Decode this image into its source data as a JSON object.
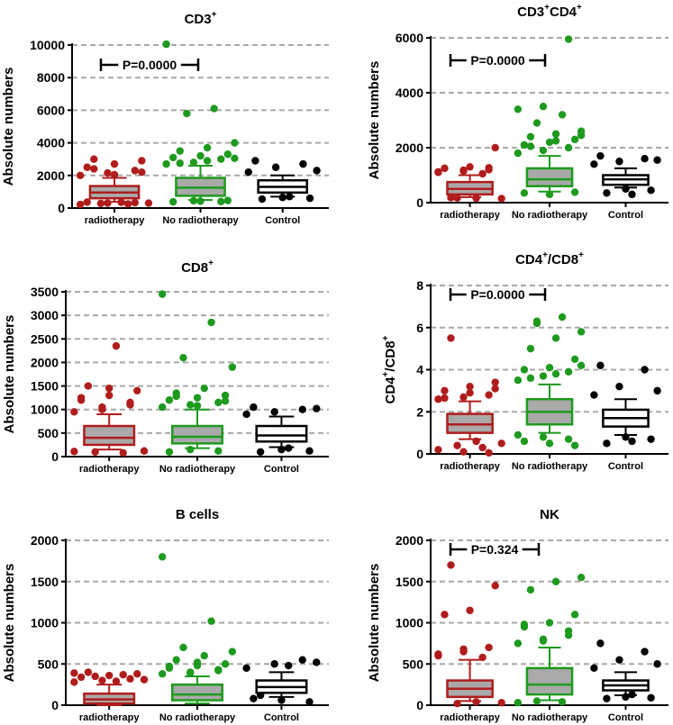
{
  "chart_data": [
    {
      "type": "box",
      "title": "CD3",
      "title_sup": "+",
      "ylabel": "Absolute numbers",
      "ylim": [
        0,
        10000
      ],
      "yticks": [
        0,
        2000,
        4000,
        6000,
        8000,
        10000
      ],
      "grid": true,
      "categories": [
        "radiotherapy",
        "No radiotherapy",
        "Control"
      ],
      "colors": [
        "#b01c1c",
        "#1e9a1e",
        "#000000"
      ],
      "boxes": [
        {
          "whisker_low": 380,
          "q1": 600,
          "median": 950,
          "q3": 1350,
          "whisker_high": 1850,
          "outliers": [
            2000,
            2150,
            2300,
            2500,
            2700,
            2900,
            3000,
            350,
            300,
            280,
            250,
            220,
            300,
            330,
            360,
            2050,
            2200,
            2400
          ]
        },
        {
          "whisker_low": 500,
          "q1": 750,
          "median": 1250,
          "q3": 1850,
          "whisker_high": 2600,
          "outliers": [
            2700,
            2800,
            3000,
            3100,
            3200,
            3300,
            3500,
            3700,
            4000,
            5800,
            6100,
            10050,
            450,
            400,
            380,
            420,
            460,
            2750,
            2900,
            3050
          ]
        },
        {
          "whisker_low": 700,
          "q1": 950,
          "median": 1300,
          "q3": 1700,
          "whisker_high": 2000,
          "outliers": [
            2200,
            2500,
            2700,
            2900,
            650,
            600,
            550,
            700,
            2300
          ]
        }
      ],
      "annotation": "P=0.0000"
    },
    {
      "type": "box",
      "title": "CD3",
      "title_sup": "+",
      "title2": "CD4",
      "title2_sup": "+",
      "ylabel": "Absolute numbers",
      "ylim": [
        0,
        6000
      ],
      "yticks": [
        0,
        2000,
        4000,
        6000
      ],
      "grid": true,
      "categories": [
        "radiotherapy",
        "No radiotherapy",
        "Control"
      ],
      "colors": [
        "#b01c1c",
        "#1e9a1e",
        "#000000"
      ],
      "boxes": [
        {
          "whisker_low": 200,
          "q1": 300,
          "median": 500,
          "q3": 750,
          "whisker_high": 1000,
          "outliers": [
            1100,
            1150,
            1200,
            1250,
            1300,
            2000,
            180,
            160,
            150,
            170,
            1050,
            1120,
            1180,
            1270
          ]
        },
        {
          "whisker_low": 400,
          "q1": 600,
          "median": 850,
          "q3": 1250,
          "whisker_high": 1700,
          "outliers": [
            1800,
            1900,
            2000,
            2100,
            2200,
            2300,
            2400,
            2500,
            2600,
            2900,
            3200,
            3400,
            3500,
            5950,
            350,
            300,
            380,
            2050,
            2250,
            2450
          ]
        },
        {
          "whisker_low": 550,
          "q1": 650,
          "median": 850,
          "q3": 1000,
          "whisker_high": 1250,
          "outliers": [
            1400,
            1500,
            1600,
            1700,
            500,
            450,
            350,
            300,
            1550
          ]
        }
      ],
      "annotation": "P=0.0000"
    },
    {
      "type": "box",
      "title": "CD8",
      "title_sup": "+",
      "ylabel": "Absolute numbers",
      "ylim": [
        0,
        3500
      ],
      "yticks": [
        0,
        500,
        1000,
        1500,
        2000,
        2500,
        3000,
        3500
      ],
      "grid": true,
      "categories": [
        "radiotherapy",
        "No radiotherapy",
        "Control"
      ],
      "colors": [
        "#b01c1c",
        "#1e9a1e",
        "#000000"
      ],
      "boxes": [
        {
          "whisker_low": 150,
          "q1": 250,
          "median": 400,
          "q3": 650,
          "whisker_high": 900,
          "outliers": [
            950,
            1000,
            1100,
            1200,
            1300,
            1400,
            1500,
            2350,
            120,
            100,
            80,
            110,
            1050,
            1150,
            1250,
            1450
          ]
        },
        {
          "whisker_low": 180,
          "q1": 280,
          "median": 420,
          "q3": 650,
          "whisker_high": 1000,
          "outliers": [
            1050,
            1100,
            1150,
            1200,
            1250,
            1300,
            1350,
            1450,
            1900,
            2100,
            2850,
            3450,
            150,
            120,
            100,
            1080,
            1180,
            1280
          ]
        },
        {
          "whisker_low": 200,
          "q1": 320,
          "median": 450,
          "q3": 650,
          "whisker_high": 850,
          "outliers": [
            900,
            950,
            1000,
            1050,
            150,
            120,
            100,
            180,
            1020
          ]
        }
      ]
    },
    {
      "type": "box",
      "title": "CD4",
      "title_sup": "+",
      "title2": "/CD8",
      "title2_sup": "+",
      "ylabel": "CD4",
      "ylabel_sup": "+",
      "ylabel2": "/CD8",
      "ylabel2_sup": "+",
      "ylim": [
        0,
        8
      ],
      "yticks": [
        0,
        2,
        4,
        6,
        8
      ],
      "grid": true,
      "categories": [
        "radiotherapy",
        "No radiotherapy",
        "Control"
      ],
      "colors": [
        "#b01c1c",
        "#1e9a1e",
        "#000000"
      ],
      "boxes": [
        {
          "whisker_low": 0.7,
          "q1": 1.0,
          "median": 1.4,
          "q3": 1.9,
          "whisker_high": 2.5,
          "outliers": [
            2.6,
            2.7,
            2.8,
            3.0,
            3.2,
            3.4,
            5.5,
            0.6,
            0.5,
            0.4,
            0.3,
            0.2,
            0.1,
            0.05,
            2.65,
            2.9,
            3.1
          ]
        },
        {
          "whisker_low": 1.0,
          "q1": 1.4,
          "median": 2.0,
          "q3": 2.6,
          "whisker_high": 3.3,
          "outliers": [
            3.5,
            3.7,
            3.9,
            4.0,
            4.1,
            4.5,
            5.0,
            5.5,
            5.8,
            6.2,
            6.5,
            0.9,
            0.8,
            0.7,
            0.6,
            0.5,
            0.4,
            3.6,
            3.8,
            4.2,
            6.3
          ]
        },
        {
          "whisker_low": 0.9,
          "q1": 1.3,
          "median": 1.7,
          "q3": 2.1,
          "whisker_high": 2.6,
          "outliers": [
            2.8,
            3.2,
            4.0,
            4.2,
            0.8,
            0.7,
            0.5,
            0.6,
            3.0
          ]
        }
      ],
      "annotation": "P=0.0000"
    },
    {
      "type": "box",
      "title": "B cells",
      "ylabel": "Absolute numbers",
      "ylim": [
        0,
        2000
      ],
      "yticks": [
        0,
        500,
        1000,
        1500,
        2000
      ],
      "grid": true,
      "categories": [
        "radiotherapy",
        "No radiotherapy",
        "Control"
      ],
      "colors": [
        "#b01c1c",
        "#1e9a1e",
        "#000000"
      ],
      "boxes": [
        {
          "whisker_low": 0,
          "q1": 20,
          "median": 70,
          "q3": 140,
          "whisker_high": 250,
          "outliers": [
            280,
            300,
            320,
            340,
            360,
            380,
            400,
            290,
            310,
            350,
            370,
            390
          ]
        },
        {
          "whisker_low": 20,
          "q1": 60,
          "median": 130,
          "q3": 250,
          "whisker_high": 350,
          "outliers": [
            380,
            400,
            420,
            450,
            480,
            500,
            550,
            600,
            650,
            700,
            1020,
            1800,
            390,
            430,
            470,
            520
          ]
        },
        {
          "whisker_low": 100,
          "q1": 150,
          "median": 220,
          "q3": 300,
          "whisker_high": 400,
          "outliers": [
            450,
            500,
            550,
            80,
            60,
            40,
            120,
            480,
            520
          ]
        }
      ]
    },
    {
      "type": "box",
      "title": "NK",
      "ylabel": "Absolute numbers",
      "ylim": [
        0,
        2000
      ],
      "yticks": [
        0,
        500,
        1000,
        1500,
        2000
      ],
      "grid": true,
      "categories": [
        "radiotherapy",
        "No radiotherapy",
        "Control"
      ],
      "colors": [
        "#b01c1c",
        "#1e9a1e",
        "#000000"
      ],
      "boxes": [
        {
          "whisker_low": 50,
          "q1": 100,
          "median": 200,
          "q3": 300,
          "whisker_high": 550,
          "outliers": [
            600,
            650,
            700,
            1100,
            1150,
            1450,
            1700,
            40,
            30,
            20,
            580,
            620,
            680
          ]
        },
        {
          "whisker_low": 60,
          "q1": 130,
          "median": 250,
          "q3": 450,
          "whisker_high": 700,
          "outliers": [
            750,
            800,
            900,
            950,
            1000,
            1100,
            1400,
            1500,
            1550,
            50,
            40,
            30,
            780,
            850,
            980
          ]
        },
        {
          "whisker_low": 120,
          "q1": 180,
          "median": 240,
          "q3": 300,
          "whisker_high": 400,
          "outliers": [
            450,
            550,
            650,
            750,
            100,
            90,
            80,
            130,
            500
          ]
        }
      ],
      "annotation": "P=0.324"
    }
  ]
}
